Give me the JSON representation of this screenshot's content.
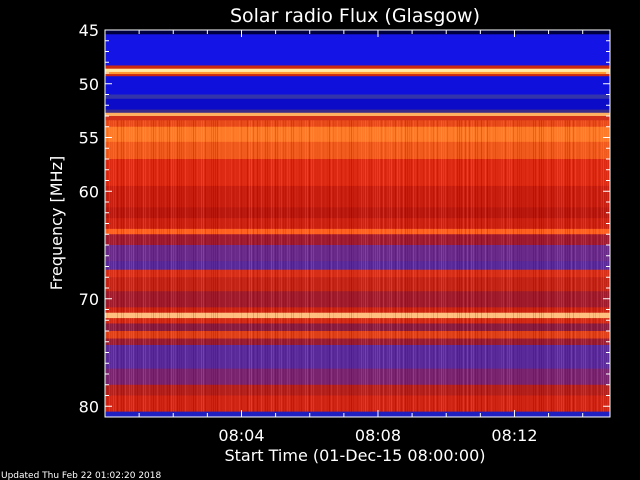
{
  "chart_data": {
    "type": "heatmap",
    "title": "Solar radio Flux (Glasgow)",
    "xlabel": "Start Time (01-Dec-15 08:00:00)",
    "ylabel": "Frequency [MHz]",
    "xlim_minutes": [
      0,
      14.8
    ],
    "ylim_mhz": [
      45,
      81
    ],
    "y_ticks": [
      45,
      50,
      55,
      60,
      70,
      80
    ],
    "y_tick_labels": [
      "45",
      "50",
      "55",
      "60",
      "70",
      "80"
    ],
    "x_ticks_minutes": [
      4,
      8,
      12
    ],
    "x_tick_labels": [
      "08:04",
      "08:08",
      "08:12"
    ],
    "bands": [
      {
        "from": 45.0,
        "to": 45.4,
        "color": "#000040"
      },
      {
        "from": 45.4,
        "to": 48.3,
        "color": "#1414e6"
      },
      {
        "from": 48.3,
        "to": 48.6,
        "color": "#cc2a10"
      },
      {
        "from": 48.6,
        "to": 48.9,
        "color": "#ffe9a0"
      },
      {
        "from": 48.9,
        "to": 49.1,
        "color": "#ff9a30"
      },
      {
        "from": 49.1,
        "to": 49.3,
        "color": "#cc2a10"
      },
      {
        "from": 49.3,
        "to": 51.0,
        "color": "#1010dd"
      },
      {
        "from": 51.0,
        "to": 51.4,
        "color": "#3333aa"
      },
      {
        "from": 51.4,
        "to": 52.4,
        "color": "#0c0cc8"
      },
      {
        "from": 52.4,
        "to": 52.7,
        "color": "#3a2a8a"
      },
      {
        "from": 52.7,
        "to": 53.0,
        "color": "#ffb060"
      },
      {
        "from": 53.0,
        "to": 53.4,
        "color": "#d23018"
      },
      {
        "from": 53.4,
        "to": 54.0,
        "color": "#e84a1a"
      },
      {
        "from": 54.0,
        "to": 55.4,
        "color": "#ff7a28"
      },
      {
        "from": 55.4,
        "to": 57.0,
        "color": "#f05a1c"
      },
      {
        "from": 57.0,
        "to": 59.5,
        "color": "#dd2a12"
      },
      {
        "from": 59.5,
        "to": 61.5,
        "color": "#c81e10"
      },
      {
        "from": 61.5,
        "to": 62.5,
        "color": "#b8180e"
      },
      {
        "from": 62.5,
        "to": 63.5,
        "color": "#cc2212"
      },
      {
        "from": 63.5,
        "to": 64.0,
        "color": "#ff6020"
      },
      {
        "from": 64.0,
        "to": 65.0,
        "color": "#a01a30"
      },
      {
        "from": 65.0,
        "to": 66.5,
        "color": "#6a2a8a"
      },
      {
        "from": 66.5,
        "to": 67.3,
        "color": "#5a2a9a"
      },
      {
        "from": 67.3,
        "to": 68.0,
        "color": "#d83018"
      },
      {
        "from": 68.0,
        "to": 69.3,
        "color": "#c42416"
      },
      {
        "from": 69.3,
        "to": 70.8,
        "color": "#a01c2c"
      },
      {
        "from": 70.8,
        "to": 71.3,
        "color": "#cc2412"
      },
      {
        "from": 71.3,
        "to": 71.8,
        "color": "#ffc080"
      },
      {
        "from": 71.8,
        "to": 72.3,
        "color": "#d22a14"
      },
      {
        "from": 72.3,
        "to": 73.0,
        "color": "#8a1c40"
      },
      {
        "from": 73.0,
        "to": 73.7,
        "color": "#e04018"
      },
      {
        "from": 73.7,
        "to": 74.3,
        "color": "#9a1c30"
      },
      {
        "from": 74.3,
        "to": 76.5,
        "color": "#5a2a9a"
      },
      {
        "from": 76.5,
        "to": 78.0,
        "color": "#7a2470"
      },
      {
        "from": 78.0,
        "to": 79.0,
        "color": "#b4201c"
      },
      {
        "from": 79.0,
        "to": 80.5,
        "color": "#d02414"
      },
      {
        "from": 80.5,
        "to": 81.0,
        "color": "#2020c0"
      }
    ],
    "colors": {
      "axis": "#ffffff",
      "background": "#000000"
    }
  },
  "footer": {
    "updated": "Updated Thu Feb 22 01:02:20 2018"
  }
}
